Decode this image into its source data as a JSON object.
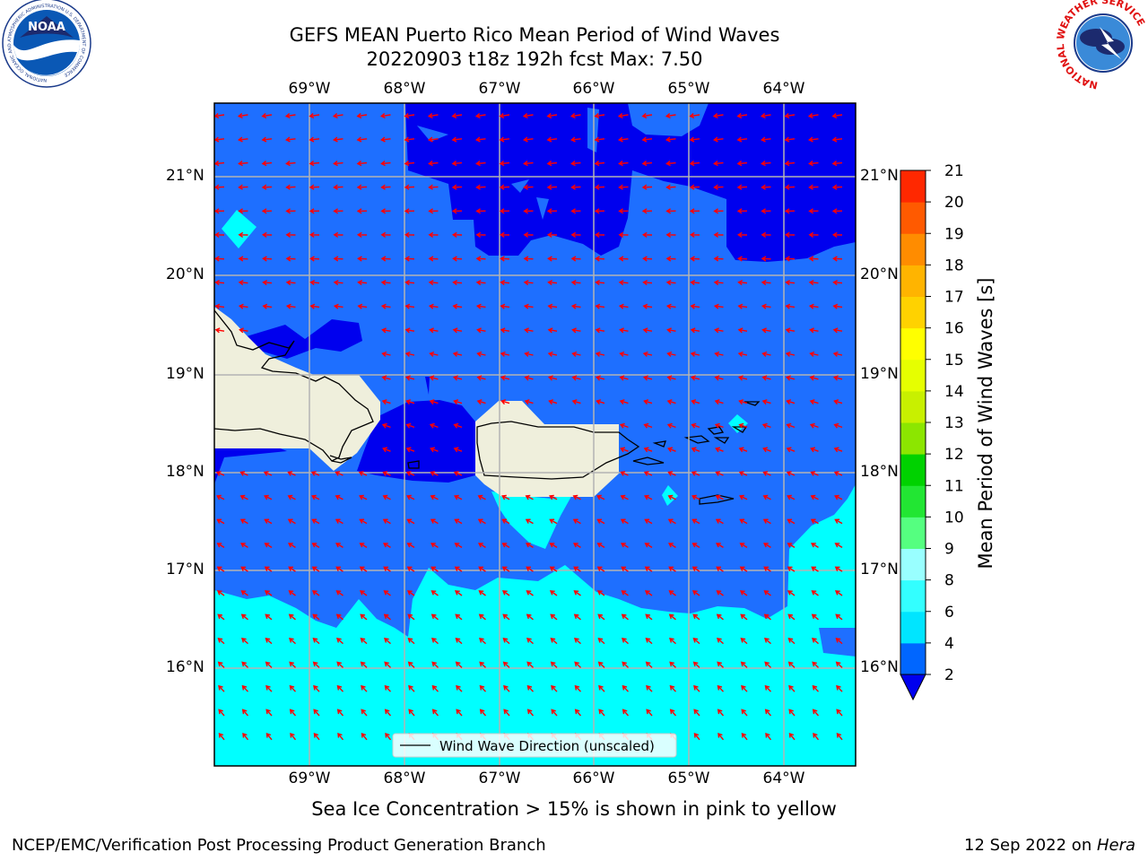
{
  "title_line1": "GEFS MEAN Puerto Rico Mean Period of Wind Waves",
  "title_line2": "20220903 t18z 192h fcst   Max: 7.50",
  "logos": {
    "noaa_text": "NOAA",
    "noaa_ring": "NATIONAL OCEANIC AND ATMOSPHERIC ADMINISTRATION  U.S. DEPARTMENT OF COMMERCE",
    "nws_ring": "NATIONAL WEATHER SERVICE"
  },
  "lon_labels": [
    "69°W",
    "68°W",
    "67°W",
    "66°W",
    "65°W",
    "64°W"
  ],
  "lat_labels": [
    "21°N",
    "20°N",
    "19°N",
    "18°N",
    "17°N",
    "16°N"
  ],
  "legend_label": "Wind Wave Direction (unscaled)",
  "colorbar": {
    "label": "Mean Period of Wind Waves [s]",
    "ticks": [
      "2",
      "4",
      "6",
      "8",
      "9",
      "10",
      "11",
      "12",
      "13",
      "14",
      "15",
      "16",
      "17",
      "18",
      "19",
      "20",
      "21"
    ],
    "colors": [
      "#0066ff",
      "#00e5ff",
      "#33ffff",
      "#99ffff",
      "#55ff80",
      "#22e633",
      "#00d200",
      "#8ce600",
      "#c8f000",
      "#e6ff00",
      "#ffff00",
      "#ffd200",
      "#ffb400",
      "#ff8c00",
      "#ff5a00",
      "#ff2800"
    ],
    "under_color": "#0000ee"
  },
  "colors": {
    "very_low": "#0000ee",
    "low": "#1e6fff",
    "mid": "#00ffff",
    "land": "#efefdc",
    "arrow": "#ff0000",
    "grid": "#b4b4b4"
  },
  "note": "Sea Ice Concentration > 15% is shown in pink to yellow",
  "footer_left": "NCEP/EMC/Verification Post Processing Product Generation Branch",
  "footer_date": "12 Sep 2022 on ",
  "footer_host": "Hera"
}
